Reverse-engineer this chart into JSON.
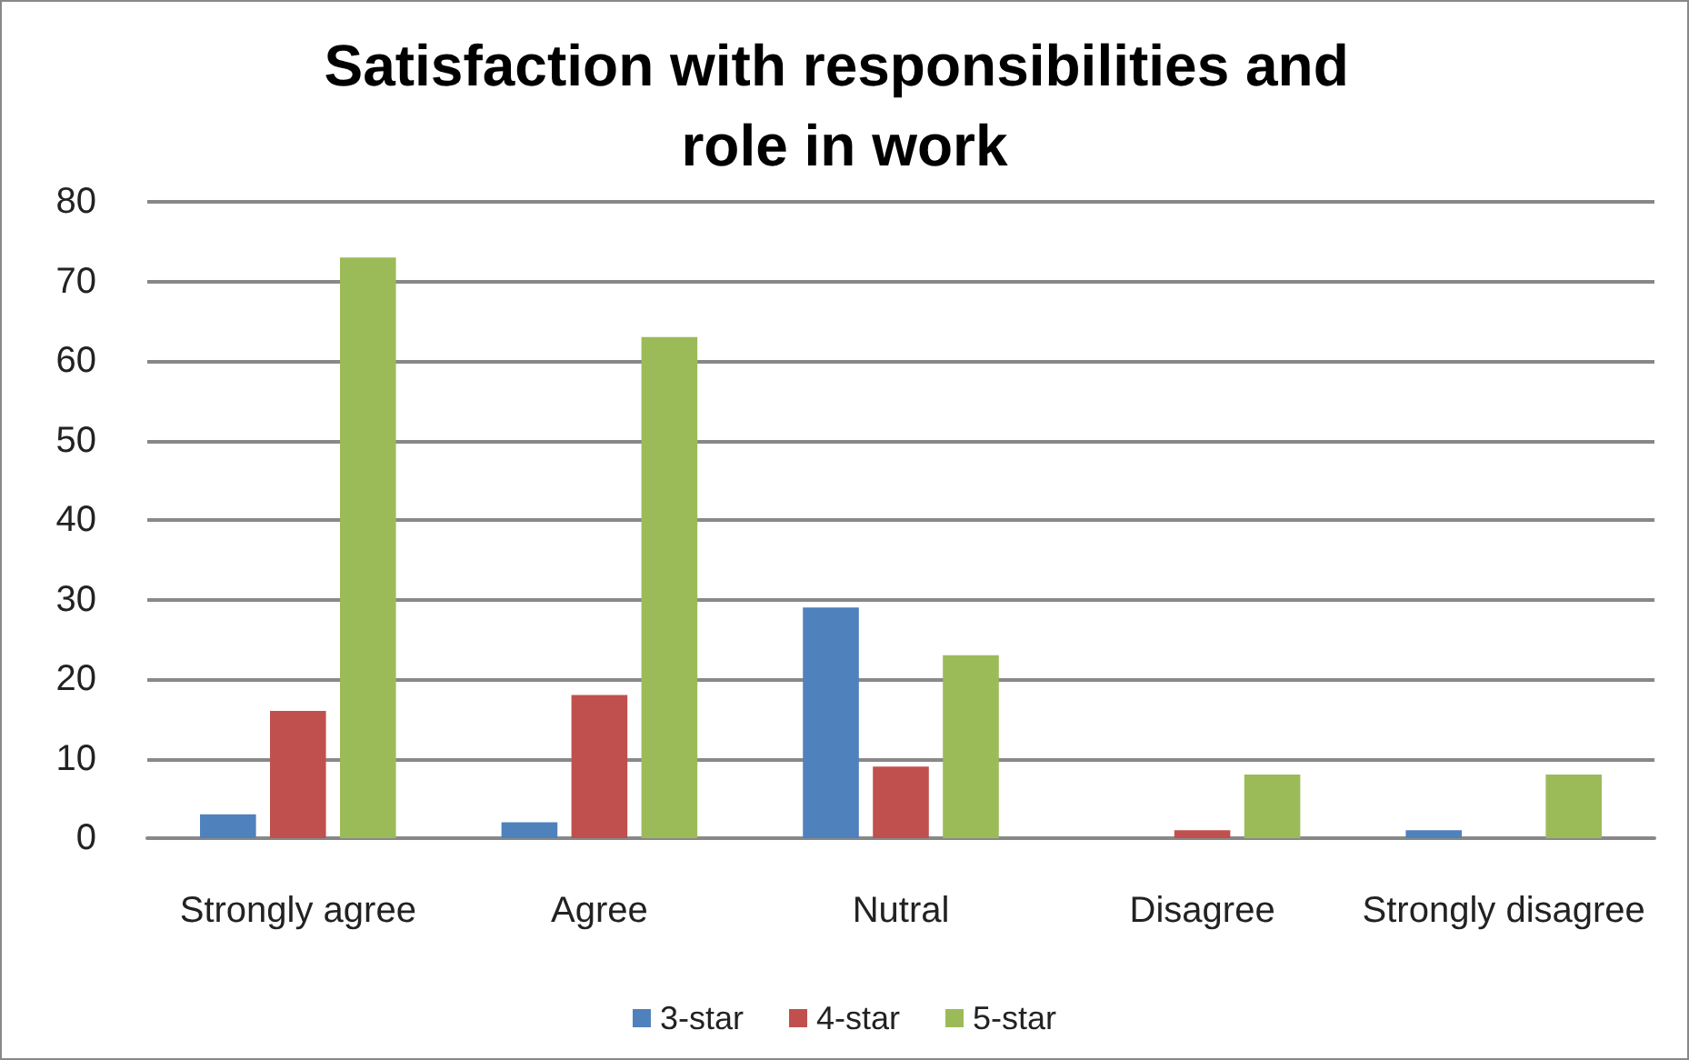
{
  "chart_data": {
    "type": "bar",
    "title": "Satisfaction with responsibilities and role in work",
    "categories": [
      "Strongly agree",
      "Agree",
      "Nutral",
      "Disagree",
      "Strongly disagree"
    ],
    "series": [
      {
        "name": "3-star",
        "color": "#4f81bd",
        "values": [
          3,
          2,
          29,
          0,
          1
        ]
      },
      {
        "name": "4-star",
        "color": "#c0504d",
        "values": [
          16,
          18,
          9,
          1,
          0
        ]
      },
      {
        "name": "5-star",
        "color": "#9bbb59",
        "values": [
          73,
          63,
          23,
          8,
          8
        ]
      }
    ],
    "ylim": [
      0,
      80
    ],
    "yticks": [
      0,
      10,
      20,
      30,
      40,
      50,
      60,
      70,
      80
    ],
    "grid": "y",
    "legend": "bottom"
  }
}
